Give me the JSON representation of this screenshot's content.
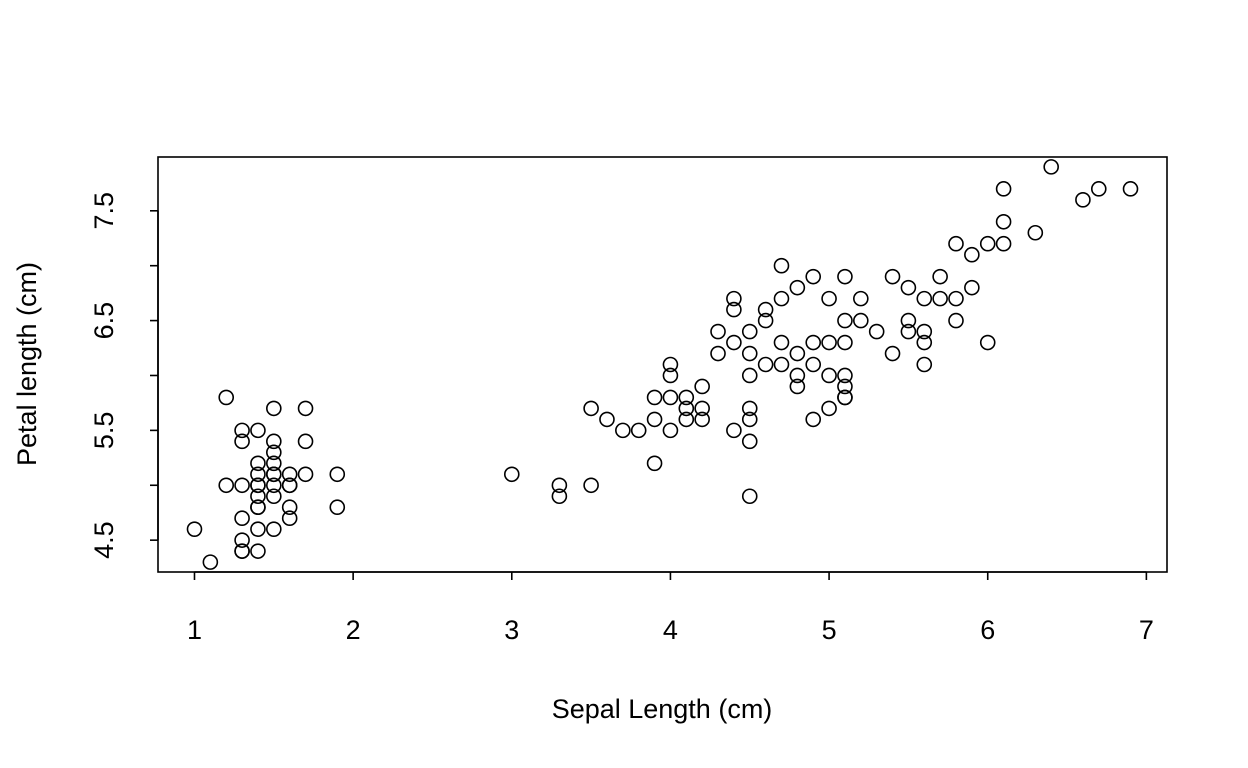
{
  "chart_data": {
    "type": "scatter",
    "title": "",
    "xlabel": "Sepal Length (cm)",
    "ylabel": "Petal length (cm)",
    "xlim": [
      0.77,
      7.13
    ],
    "ylim": [
      4.21,
      7.99
    ],
    "xticks": [
      1,
      2,
      3,
      4,
      5,
      6,
      7
    ],
    "yticks": [
      4.5,
      5,
      5.5,
      6,
      6.5,
      7,
      7.5
    ],
    "ytick_labels": [
      "4.5",
      "",
      "5.5",
      "",
      "6.5",
      "",
      "7.5"
    ],
    "grid": false,
    "point_style": "open-circle",
    "x": [
      1.0,
      1.1,
      1.2,
      1.2,
      1.3,
      1.3,
      1.3,
      1.3,
      1.3,
      1.3,
      1.3,
      1.4,
      1.4,
      1.4,
      1.4,
      1.4,
      1.4,
      1.4,
      1.4,
      1.4,
      1.4,
      1.5,
      1.5,
      1.5,
      1.5,
      1.5,
      1.5,
      1.5,
      1.5,
      1.5,
      1.6,
      1.6,
      1.6,
      1.6,
      1.6,
      1.7,
      1.7,
      1.7,
      1.9,
      1.9,
      3.0,
      3.3,
      3.3,
      3.5,
      3.5,
      3.6,
      3.7,
      3.8,
      3.9,
      3.9,
      3.9,
      4.0,
      4.0,
      4.0,
      4.0,
      4.1,
      4.1,
      4.1,
      4.2,
      4.2,
      4.2,
      4.3,
      4.3,
      4.4,
      4.4,
      4.4,
      4.4,
      4.5,
      4.5,
      4.5,
      4.5,
      4.5,
      4.5,
      4.5,
      4.6,
      4.6,
      4.6,
      4.7,
      4.7,
      4.7,
      4.7,
      4.8,
      4.8,
      4.8,
      4.8,
      4.9,
      4.9,
      4.9,
      4.9,
      5.0,
      5.0,
      5.0,
      5.0,
      5.1,
      5.1,
      5.1,
      5.1,
      5.1,
      5.1,
      5.1,
      5.2,
      5.2,
      5.3,
      5.4,
      5.4,
      5.5,
      5.5,
      5.5,
      5.6,
      5.6,
      5.6,
      5.6,
      5.7,
      5.7,
      5.8,
      5.8,
      5.8,
      5.9,
      5.9,
      6.0,
      6.0,
      6.1,
      6.1,
      6.1,
      6.3,
      6.4,
      6.6,
      6.7,
      6.9
    ],
    "y": [
      4.6,
      4.3,
      5.8,
      5.0,
      5.5,
      5.4,
      5.0,
      4.7,
      4.5,
      4.4,
      4.4,
      5.5,
      5.2,
      5.1,
      5.0,
      4.9,
      4.8,
      4.8,
      4.6,
      4.4,
      5.0,
      5.7,
      5.4,
      5.3,
      5.2,
      5.1,
      5.0,
      4.9,
      4.6,
      5.1,
      5.1,
      5.0,
      4.8,
      4.7,
      5.0,
      5.7,
      5.4,
      5.1,
      5.1,
      4.8,
      5.1,
      5.0,
      4.9,
      5.7,
      5.0,
      5.6,
      5.5,
      5.5,
      5.8,
      5.6,
      5.2,
      6.1,
      6.0,
      5.8,
      5.5,
      5.8,
      5.7,
      5.6,
      5.9,
      5.7,
      5.6,
      6.4,
      6.2,
      6.7,
      6.6,
      6.3,
      5.5,
      6.4,
      6.2,
      6.0,
      5.7,
      5.6,
      5.4,
      4.9,
      6.6,
      6.5,
      6.1,
      7.0,
      6.7,
      6.3,
      6.1,
      6.8,
      6.2,
      6.0,
      5.9,
      6.9,
      6.3,
      6.1,
      5.6,
      6.7,
      6.3,
      6.0,
      5.7,
      6.9,
      6.5,
      6.3,
      6.0,
      5.9,
      5.8,
      5.8,
      6.7,
      6.5,
      6.4,
      6.9,
      6.2,
      6.8,
      6.5,
      6.4,
      6.7,
      6.4,
      6.3,
      6.1,
      6.9,
      6.7,
      7.2,
      6.7,
      6.5,
      7.1,
      6.8,
      7.2,
      6.3,
      7.7,
      7.4,
      7.2,
      7.3,
      7.9,
      7.6,
      7.7,
      7.7
    ]
  }
}
